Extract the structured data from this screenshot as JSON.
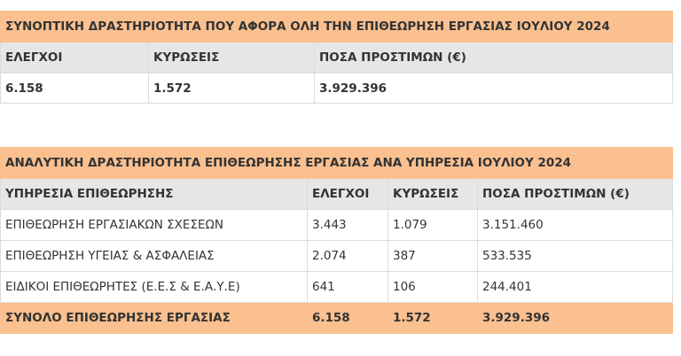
{
  "summary": {
    "title": "ΣΥΝΟΠΤΙΚΗ ΔΡΑΣΤΗΡΙΟΤΗΤΑ ΠΟΥ ΑΦΟΡΑ ΟΛΗ ΤΗΝ ΕΠΙΘΕΩΡΗΣΗ ΕΡΓΑΣΙΑΣ ΙΟΥΛΙΟΥ 2024",
    "headers": [
      "ΕΛΕΓΧΟΙ",
      "ΚΥΡΩΣΕΙΣ",
      "ΠΟΣΑ ΠΡΟΣΤΙΜΩΝ (€)"
    ],
    "values": [
      "6.158",
      "1.572",
      "3.929.396"
    ]
  },
  "detail": {
    "title": "ΑΝΑΛΥΤΙΚΗ ΔΡΑΣΤΗΡΙΟΤΗΤΑ ΕΠΙΘΕΩΡΗΣΗΣ ΕΡΓΑΣΙΑΣ ΑΝΑ ΥΠΗΡΕΣΙΑ ΙΟΥΛΙΟΥ 2024",
    "headers": [
      "ΥΠΗΡΕΣΙΑ ΕΠΙΘΕΩΡΗΣΗΣ",
      "ΕΛΕΓΧΟΙ",
      "ΚΥΡΩΣΕΙΣ",
      "ΠΟΣΑ ΠΡΟΣΤΙΜΩΝ (€)"
    ],
    "rows": [
      [
        "ΕΠΙΘΕΩΡΗΣΗ ΕΡΓΑΣΙΑΚΩΝ ΣΧΕΣΕΩΝ",
        "3.443",
        "1.079",
        "3.151.460"
      ],
      [
        "ΕΠΙΘΕΩΡΗΣΗ ΥΓΕΙΑΣ & ΑΣΦΑΛΕΙΑΣ",
        "2.074",
        "387",
        "533.535"
      ],
      [
        "ΕΙΔΙΚΟΙ ΕΠΙΘΕΩΡΗΤΕΣ (Ε.Ε.Σ & Ε.Α.Υ.Ε)",
        "641",
        "106",
        "244.401"
      ]
    ],
    "total": [
      "ΣΥΝΟΛΟ ΕΠΙΘΕΩΡΗΣΗΣ ΕΡΓΑΣΙΑΣ",
      "6.158",
      "1.572",
      "3.929.396"
    ]
  },
  "colors": {
    "title_background": "#fac090",
    "header_background": "#e6e6e6",
    "border": "#dcdcdc"
  }
}
